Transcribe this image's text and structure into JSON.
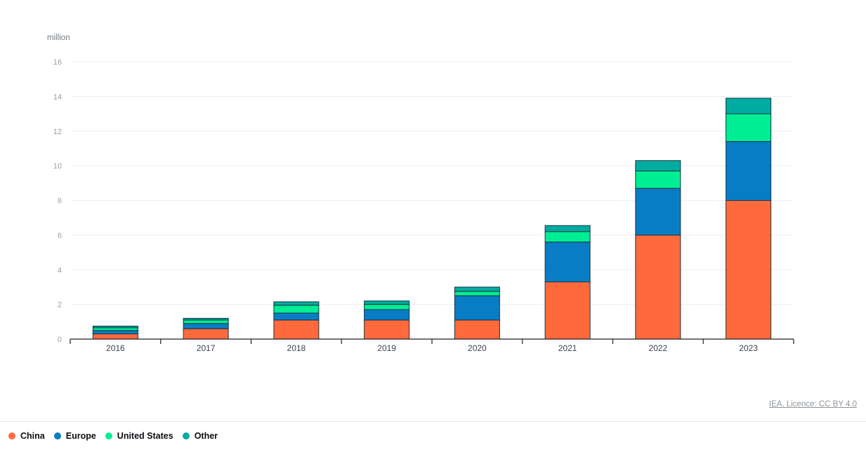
{
  "chart_data": {
    "type": "bar",
    "stacked": true,
    "unit_label": "million",
    "categories": [
      "2016",
      "2017",
      "2018",
      "2019",
      "2020",
      "2021",
      "2022",
      "2023"
    ],
    "series": [
      {
        "name": "China",
        "color": "#ff6a3d",
        "values": [
          0.3,
          0.6,
          1.1,
          1.1,
          1.1,
          3.3,
          6.0,
          8.0
        ]
      },
      {
        "name": "Europe",
        "color": "#087dc6",
        "values": [
          0.2,
          0.3,
          0.4,
          0.6,
          1.4,
          2.3,
          2.7,
          3.4
        ]
      },
      {
        "name": "United States",
        "color": "#00ee93",
        "values": [
          0.15,
          0.2,
          0.45,
          0.3,
          0.25,
          0.6,
          1.0,
          1.6
        ]
      },
      {
        "name": "Other",
        "color": "#00aba0",
        "values": [
          0.1,
          0.1,
          0.2,
          0.2,
          0.25,
          0.35,
          0.6,
          0.9
        ]
      }
    ],
    "ylim": [
      0,
      16
    ],
    "ytick_step": 2,
    "grid": "horizontal",
    "legend_position": "bottom-left",
    "bar_outline_color": "#17353f",
    "gridline_color": "#ededed",
    "axis_color": "#222222"
  },
  "attribution": {
    "label": "IEA. Licence: CC BY 4.0"
  }
}
